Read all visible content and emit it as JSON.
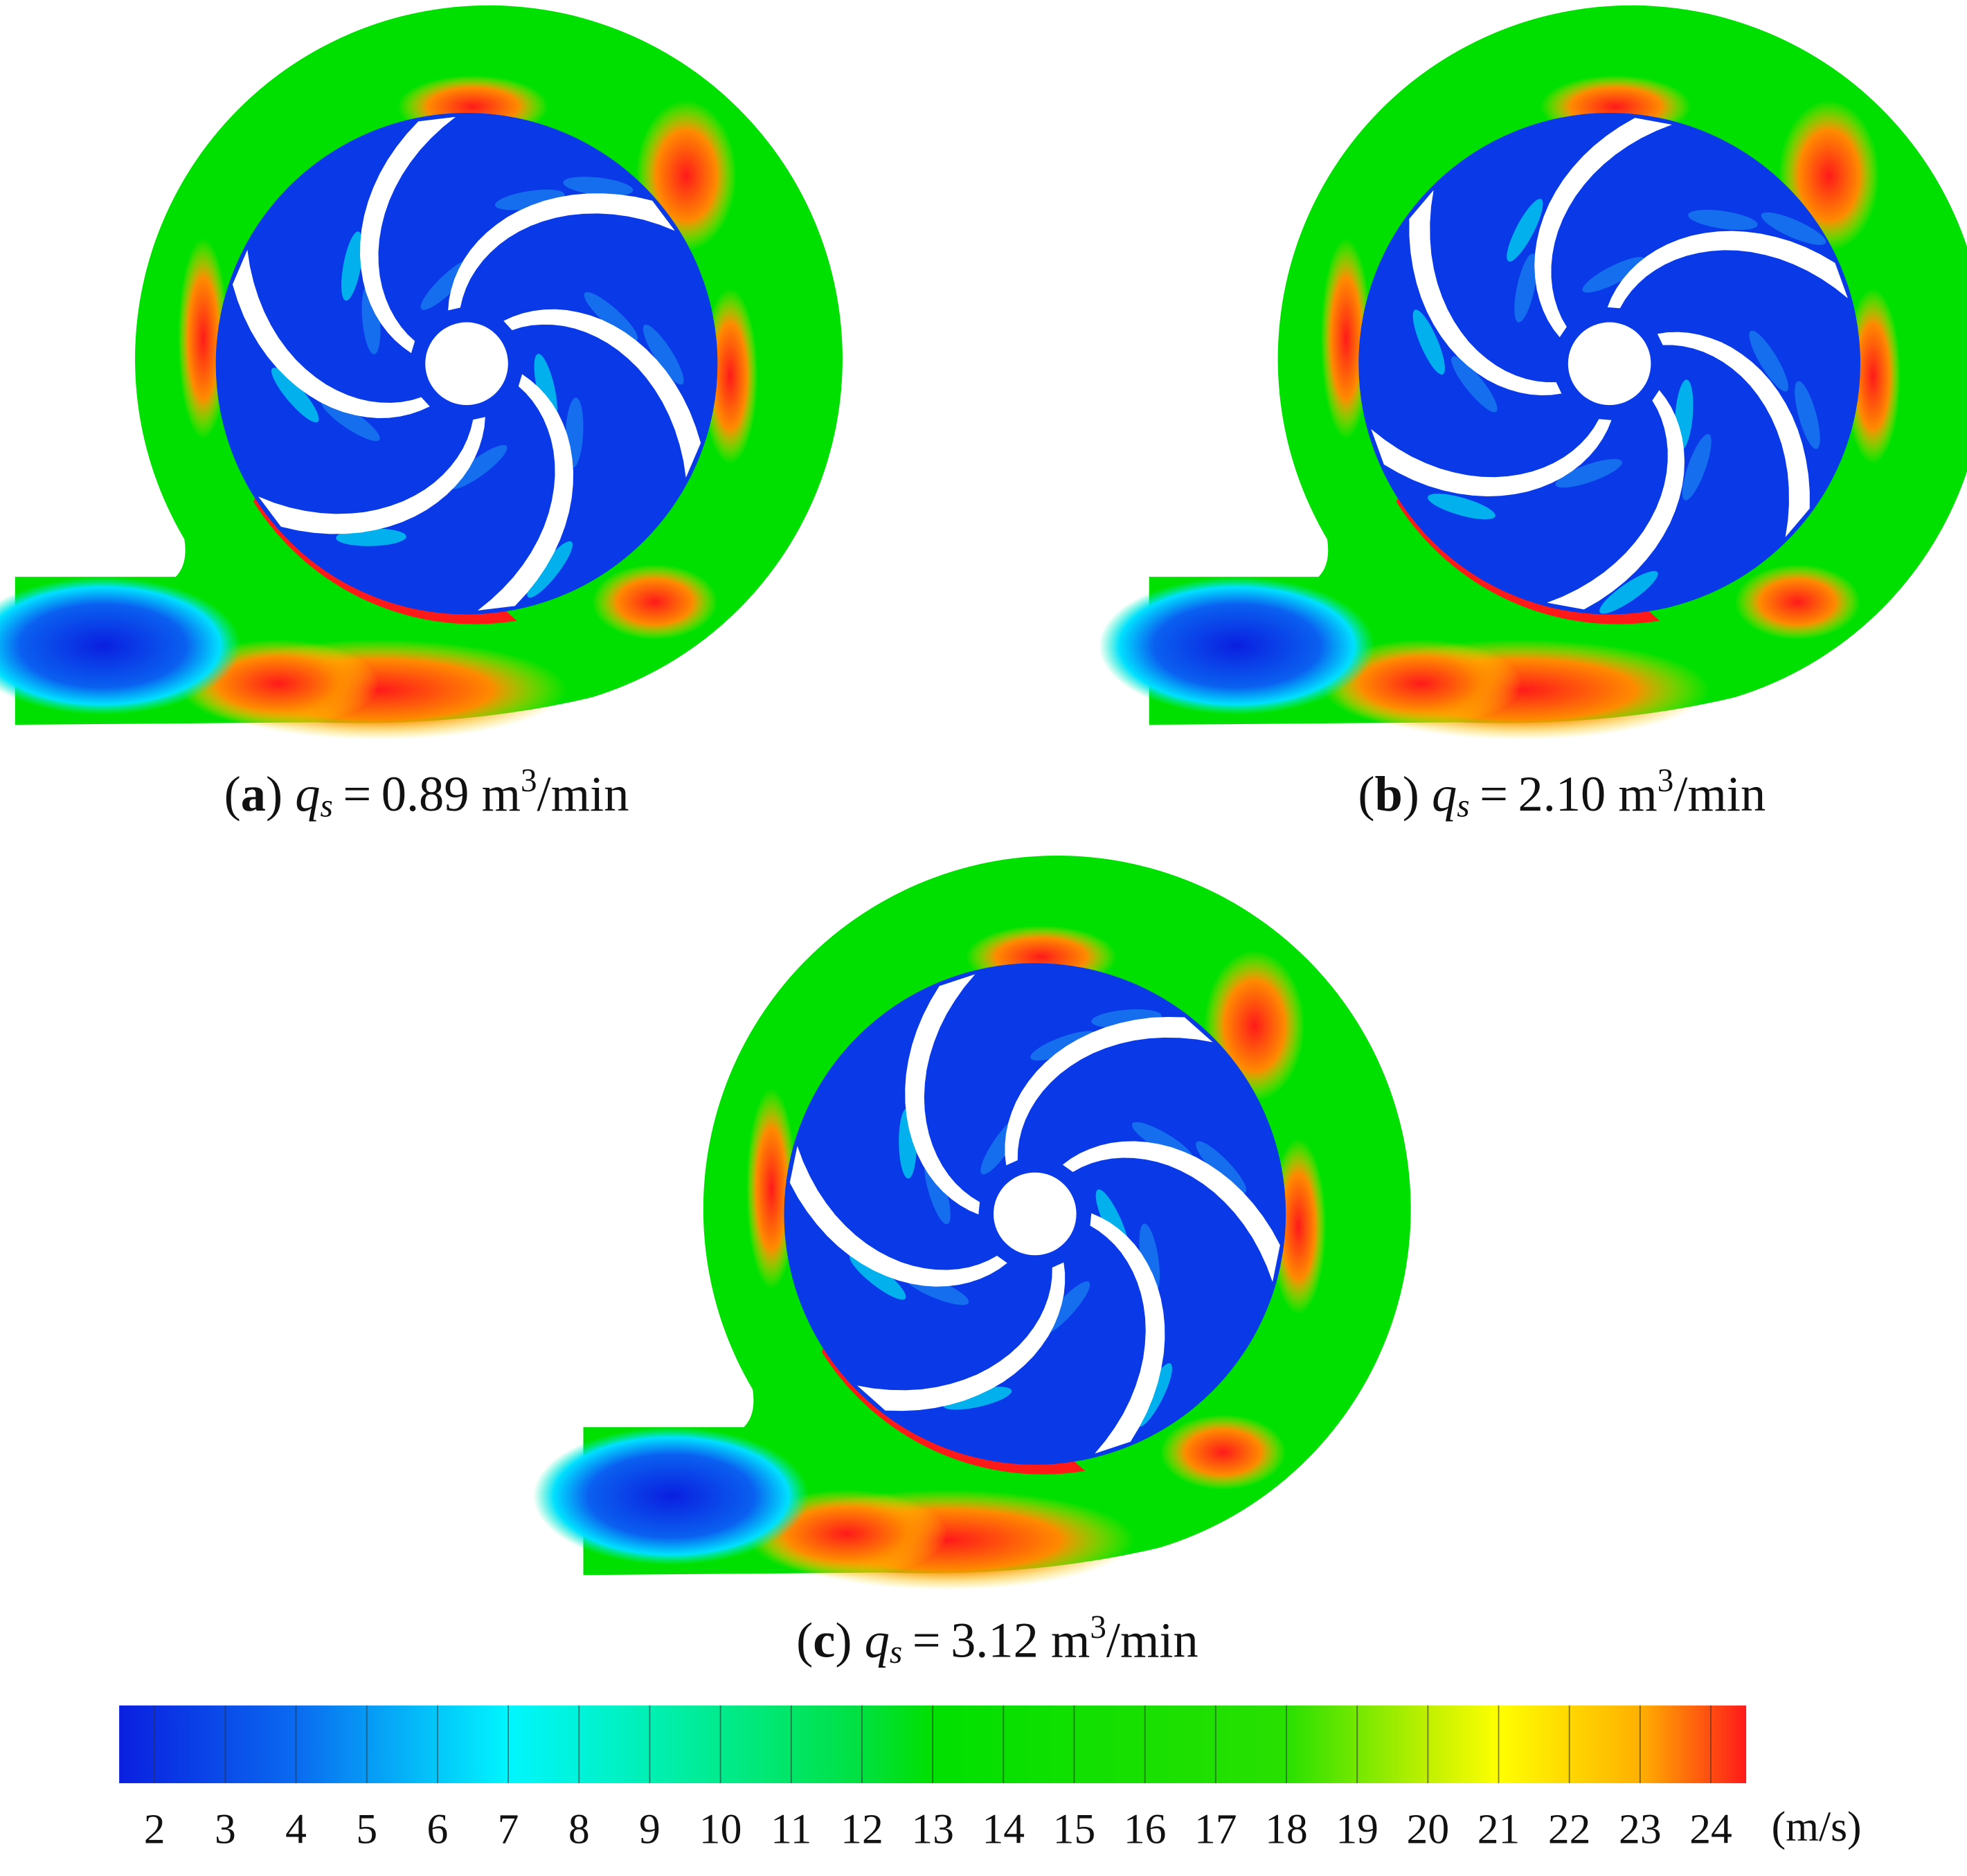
{
  "panels": [
    {
      "open": "(",
      "letter": "a",
      "close": ")",
      "symbol": "q",
      "subscript": "s",
      "equals": "=",
      "value": "0.89",
      "unit": "m",
      "exponent": "3",
      "per": "/min"
    },
    {
      "open": "(",
      "letter": "b",
      "close": ")",
      "symbol": "q",
      "subscript": "s",
      "equals": "=",
      "value": "2.10",
      "unit": "m",
      "exponent": "3",
      "per": "/min"
    },
    {
      "open": "(",
      "letter": "c",
      "close": ")",
      "symbol": "q",
      "subscript": "s",
      "equals": "=",
      "value": "3.12",
      "unit": "m",
      "exponent": "3",
      "per": "/min"
    }
  ],
  "colorbar": {
    "vlim": [
      1.5,
      24.5
    ],
    "ticks": [
      2,
      3,
      4,
      5,
      6,
      7,
      8,
      9,
      10,
      11,
      12,
      13,
      14,
      15,
      16,
      17,
      18,
      19,
      20,
      21,
      22,
      23,
      24
    ],
    "unit": "(m/s)",
    "colormap": [
      {
        "value": 1.5,
        "color": "#0a1fe0"
      },
      {
        "value": 4,
        "color": "#0a6af0"
      },
      {
        "value": 7,
        "color": "#00f6ff"
      },
      {
        "value": 9,
        "color": "#00f0b4"
      },
      {
        "value": 12,
        "color": "#00e040"
      },
      {
        "value": 13,
        "color": "#00e000"
      },
      {
        "value": 18,
        "color": "#28e000"
      },
      {
        "value": 20,
        "color": "#c0f000"
      },
      {
        "value": 21,
        "color": "#ffff00"
      },
      {
        "value": 23,
        "color": "#ffb000"
      },
      {
        "value": 24.5,
        "color": "#ff1a1a"
      }
    ]
  }
}
